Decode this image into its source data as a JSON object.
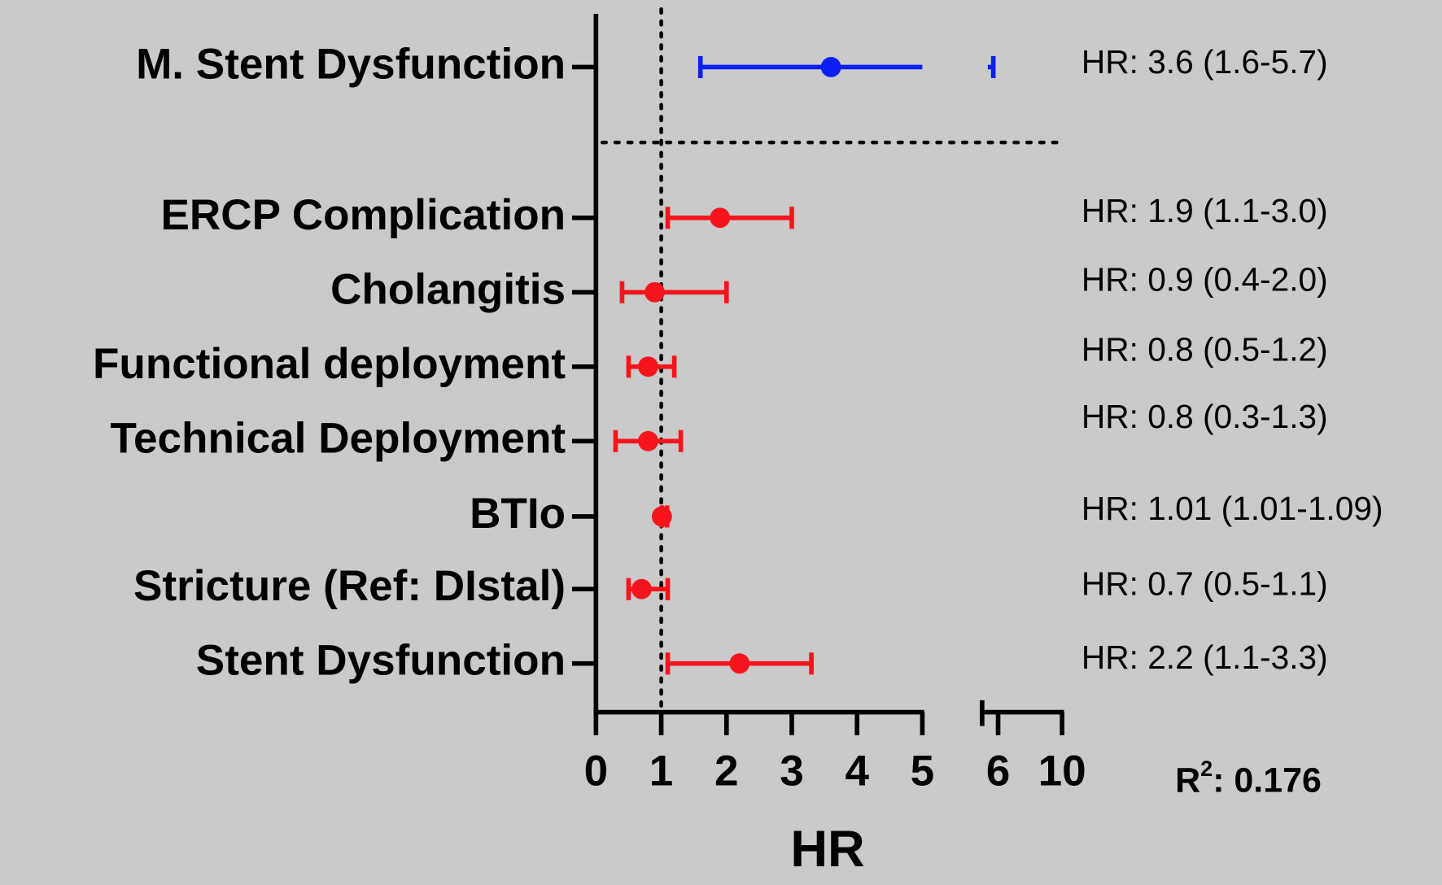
{
  "chart_data": {
    "type": "forest",
    "categories": [
      "M. Stent Dysfunction",
      "ERCP Complication",
      "Cholangitis",
      "Functional deployment",
      "Technical Deployment",
      "BTIo",
      "Stricture (Ref: DIstal)",
      "Stent Dysfunction"
    ],
    "values": [
      3.6,
      1.9,
      0.9,
      0.8,
      0.8,
      1.01,
      0.7,
      2.2
    ],
    "lower": [
      1.6,
      1.1,
      0.4,
      0.5,
      0.3,
      1.01,
      0.5,
      1.1
    ],
    "upper": [
      5.7,
      3.0,
      2.0,
      1.2,
      1.3,
      1.09,
      1.1,
      3.3
    ],
    "value_labels": [
      "HR: 3.6 (1.6-5.7)",
      "HR: 1.9 (1.1-3.0)",
      "HR: 0.9 (0.4-2.0)",
      "HR: 0.8 (0.5-1.2)",
      "HR: 0.8 (0.3-1.3)",
      "HR: 1.01 (1.01-1.09)",
      "HR: 0.7 (0.5-1.1)",
      "HR: 2.2 (1.1-3.3)"
    ],
    "colors": [
      "#0b1ff5",
      "#f5141b",
      "#f5141b",
      "#f5141b",
      "#f5141b",
      "#f5141b",
      "#f5141b",
      "#f5141b"
    ],
    "xlim": [
      0,
      10
    ],
    "axis_break": 5,
    "xticks": [
      0,
      1,
      2,
      3,
      4,
      5,
      6,
      10
    ],
    "reference_line": 1,
    "xlabel": "HR",
    "annotation": {
      "base": "R",
      "sup": "2",
      "rest": ": 0.176"
    }
  }
}
